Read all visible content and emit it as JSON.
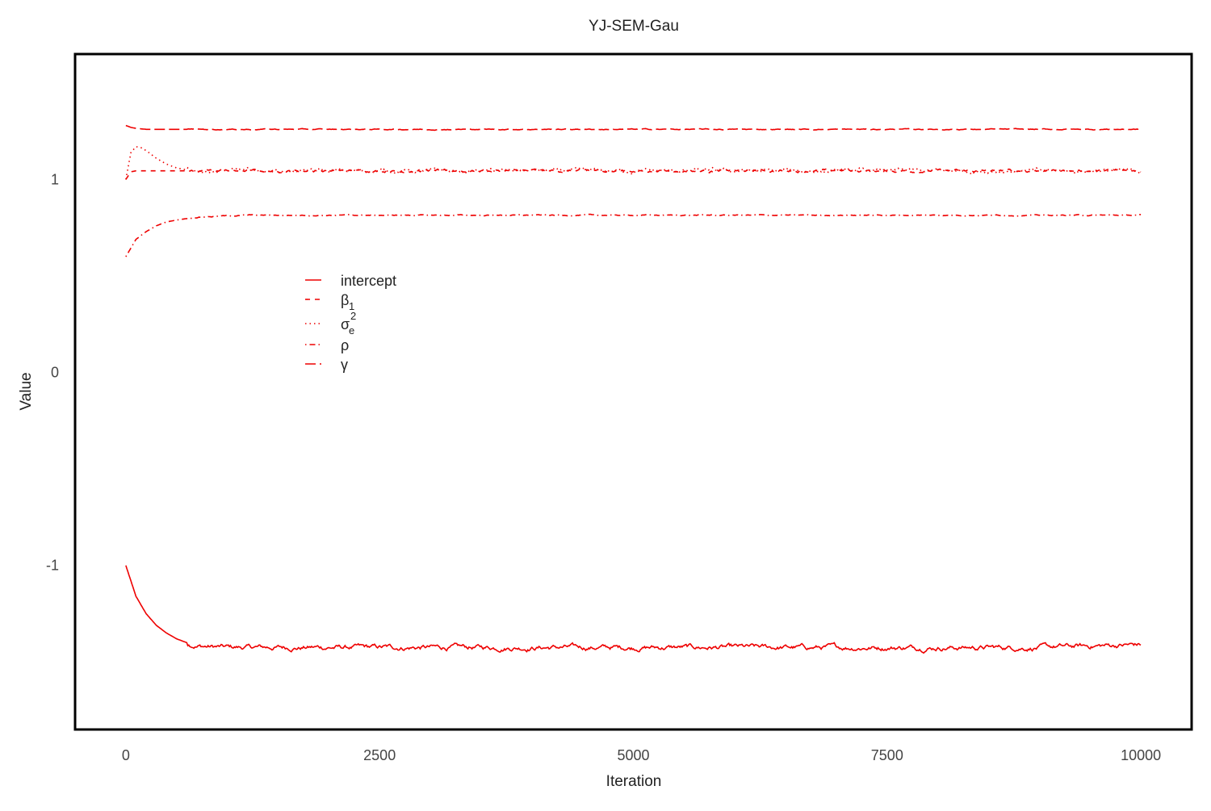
{
  "chart_data": {
    "type": "line",
    "title": "YJ-SEM-Gau",
    "xlabel": "Iteration",
    "ylabel": "Value",
    "xlim": [
      -500,
      10500
    ],
    "ylim": [
      -1.85,
      1.65
    ],
    "x_ticks": [
      0,
      2500,
      5000,
      7500,
      10000
    ],
    "x_tick_labels": [
      "0",
      "2500",
      "5000",
      "7500",
      "10000"
    ],
    "y_ticks": [
      -1,
      0,
      1
    ],
    "y_tick_labels": [
      "-1",
      "0",
      "1"
    ],
    "grid": false,
    "legend_position": "upper-left inside",
    "color": "#ee0000",
    "series": [
      {
        "name": "intercept",
        "legend_text": "intercept",
        "dash": "solid",
        "x": [
          0,
          100,
          200,
          300,
          400,
          500,
          600,
          700,
          800,
          1000,
          2000,
          3000,
          4000,
          5000,
          6000,
          7000,
          8000,
          9000,
          10000
        ],
        "values": [
          -1.0,
          -1.16,
          -1.25,
          -1.31,
          -1.35,
          -1.38,
          -1.4,
          -1.415,
          -1.42,
          -1.425,
          -1.425,
          -1.425,
          -1.425,
          -1.425,
          -1.425,
          -1.425,
          -1.425,
          -1.425,
          -1.41
        ]
      },
      {
        "name": "β1",
        "legend_text": "β",
        "legend_sub": "1",
        "dash": "short-dash",
        "x": [
          0,
          50,
          100,
          10000
        ],
        "values": [
          1.0,
          1.04,
          1.045,
          1.045
        ]
      },
      {
        "name": "σe2",
        "legend_text": "σ",
        "legend_sub": "e",
        "legend_sup": "2",
        "dash": "dotted",
        "x": [
          0,
          50,
          100,
          150,
          200,
          300,
          400,
          500,
          600,
          700,
          1000,
          10000
        ],
        "values": [
          1.0,
          1.14,
          1.17,
          1.165,
          1.15,
          1.11,
          1.08,
          1.06,
          1.05,
          1.045,
          1.045,
          1.045
        ]
      },
      {
        "name": "ρ",
        "legend_text": "ρ",
        "dash": "dot-dash",
        "x": [
          0,
          100,
          200,
          300,
          400,
          500,
          700,
          900,
          1200,
          10000
        ],
        "values": [
          0.6,
          0.69,
          0.73,
          0.76,
          0.78,
          0.79,
          0.805,
          0.81,
          0.815,
          0.815
        ]
      },
      {
        "name": "γ",
        "legend_text": "γ",
        "dash": "long-dash",
        "x": [
          0,
          50,
          100,
          200,
          10000
        ],
        "values": [
          1.28,
          1.27,
          1.265,
          1.26,
          1.26
        ]
      }
    ]
  }
}
